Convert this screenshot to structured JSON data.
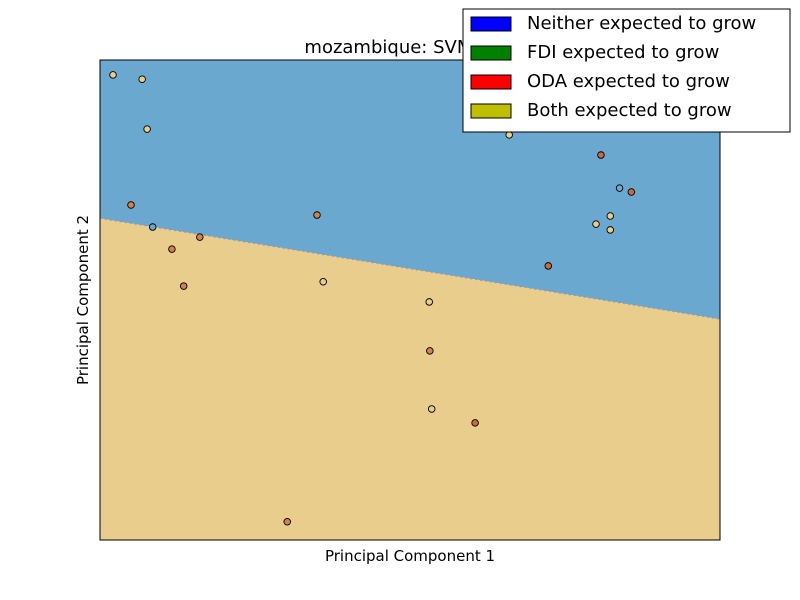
{
  "chart_data": {
    "type": "scatter",
    "title": "mozambique: SVM Line",
    "xlabel": "Principal Component 1",
    "ylabel": "Principal Component 2",
    "xlim": [
      0,
      100
    ],
    "ylim": [
      0,
      100
    ],
    "grid": false,
    "legend_position": "top-right",
    "legend": [
      {
        "label": "Neither expected to grow",
        "color": "#0000ff"
      },
      {
        "label": "FDI expected to grow",
        "color": "#008000"
      },
      {
        "label": "ODA expected to grow",
        "color": "#ff0000"
      },
      {
        "label": "Both expected to grow",
        "color": "#bfbf00"
      }
    ],
    "regions": [
      {
        "name": "upper",
        "color": "#6aa8d0"
      },
      {
        "name": "lower",
        "color": "#e8cd8c"
      }
    ],
    "boundary": {
      "x": [
        0,
        100
      ],
      "y": [
        67,
        46
      ],
      "color": "#c88a78"
    },
    "points": [
      {
        "x": 2.1,
        "y": 96.9,
        "color": "#e8cd8c"
      },
      {
        "x": 6.8,
        "y": 96.0,
        "color": "#e8cd8c"
      },
      {
        "x": 7.6,
        "y": 85.6,
        "color": "#e8cd8c"
      },
      {
        "x": 5.0,
        "y": 69.8,
        "color": "#d87f4e"
      },
      {
        "x": 8.5,
        "y": 65.2,
        "color": "#6aa8d0"
      },
      {
        "x": 11.6,
        "y": 60.6,
        "color": "#d87f4e"
      },
      {
        "x": 16.1,
        "y": 63.1,
        "color": "#d87f4e"
      },
      {
        "x": 13.5,
        "y": 52.9,
        "color": "#d87f4e"
      },
      {
        "x": 35.0,
        "y": 67.7,
        "color": "#d87f4e"
      },
      {
        "x": 36.0,
        "y": 53.8,
        "color": "#e8cd8c"
      },
      {
        "x": 30.2,
        "y": 3.8,
        "color": "#d87f4e"
      },
      {
        "x": 53.1,
        "y": 49.6,
        "color": "#e8cd8c"
      },
      {
        "x": 53.2,
        "y": 39.4,
        "color": "#d87f4e"
      },
      {
        "x": 53.5,
        "y": 27.3,
        "color": "#e8cd8c"
      },
      {
        "x": 60.5,
        "y": 24.4,
        "color": "#c86a3e"
      },
      {
        "x": 66.0,
        "y": 84.4,
        "color": "#e8cd8c"
      },
      {
        "x": 72.3,
        "y": 57.1,
        "color": "#c86a3e"
      },
      {
        "x": 80.8,
        "y": 80.2,
        "color": "#c86a3e"
      },
      {
        "x": 83.8,
        "y": 73.3,
        "color": "#6aa8d0"
      },
      {
        "x": 85.7,
        "y": 72.5,
        "color": "#c86a3e"
      },
      {
        "x": 80.0,
        "y": 65.8,
        "color": "#e8cd8c"
      },
      {
        "x": 82.3,
        "y": 67.5,
        "color": "#e8cd8c"
      },
      {
        "x": 82.3,
        "y": 64.6,
        "color": "#e8cd8c"
      }
    ]
  }
}
